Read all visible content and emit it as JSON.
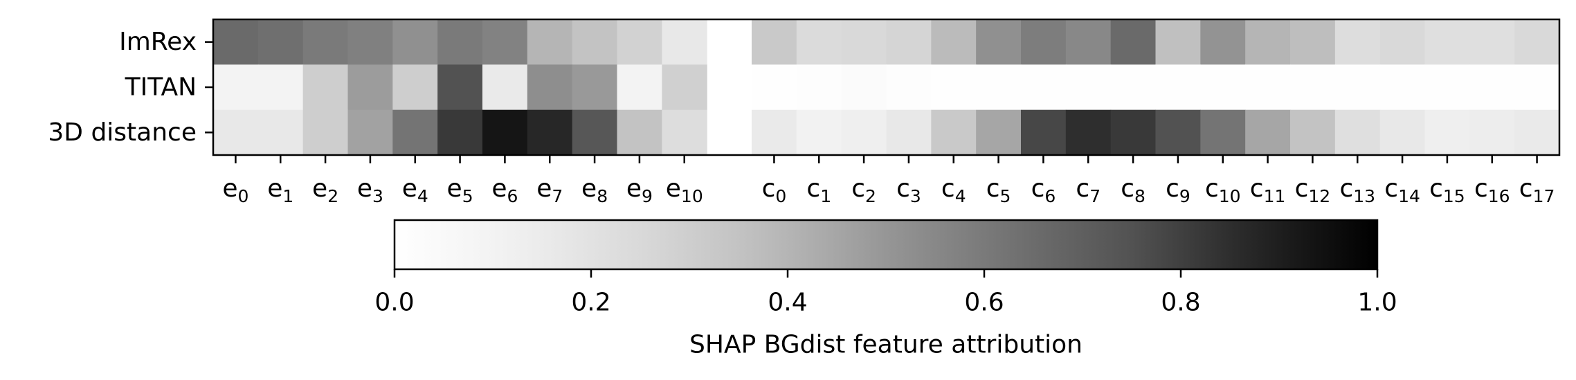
{
  "chart_data": {
    "type": "heatmap",
    "colormap": "Greys",
    "color_range": [
      0.0,
      1.0
    ],
    "rows": [
      "ImRex",
      "TITAN",
      "3D distance"
    ],
    "epitope_columns": [
      {
        "base": "e",
        "sub": "0"
      },
      {
        "base": "e",
        "sub": "1"
      },
      {
        "base": "e",
        "sub": "2"
      },
      {
        "base": "e",
        "sub": "3"
      },
      {
        "base": "e",
        "sub": "4"
      },
      {
        "base": "e",
        "sub": "5"
      },
      {
        "base": "e",
        "sub": "6"
      },
      {
        "base": "e",
        "sub": "7"
      },
      {
        "base": "e",
        "sub": "8"
      },
      {
        "base": "e",
        "sub": "9"
      },
      {
        "base": "e",
        "sub": "10"
      }
    ],
    "cdr3_columns": [
      {
        "base": "c",
        "sub": "0"
      },
      {
        "base": "c",
        "sub": "1"
      },
      {
        "base": "c",
        "sub": "2"
      },
      {
        "base": "c",
        "sub": "3"
      },
      {
        "base": "c",
        "sub": "4"
      },
      {
        "base": "c",
        "sub": "5"
      },
      {
        "base": "c",
        "sub": "6"
      },
      {
        "base": "c",
        "sub": "7"
      },
      {
        "base": "c",
        "sub": "8"
      },
      {
        "base": "c",
        "sub": "9"
      },
      {
        "base": "c",
        "sub": "10"
      },
      {
        "base": "c",
        "sub": "11"
      },
      {
        "base": "c",
        "sub": "12"
      },
      {
        "base": "c",
        "sub": "13"
      },
      {
        "base": "c",
        "sub": "14"
      },
      {
        "base": "c",
        "sub": "15"
      },
      {
        "base": "c",
        "sub": "16"
      },
      {
        "base": "c",
        "sub": "17"
      }
    ],
    "epitope_values": [
      [
        0.66,
        0.64,
        0.6,
        0.58,
        0.52,
        0.6,
        0.57,
        0.4,
        0.35,
        0.28,
        0.17
      ],
      [
        0.1,
        0.1,
        0.3,
        0.48,
        0.3,
        0.75,
        0.16,
        0.53,
        0.49,
        0.1,
        0.29
      ],
      [
        0.17,
        0.17,
        0.3,
        0.46,
        0.62,
        0.82,
        0.93,
        0.87,
        0.73,
        0.35,
        0.23
      ]
    ],
    "cdr3_values": [
      [
        0.32,
        0.24,
        0.25,
        0.27,
        0.38,
        0.52,
        0.59,
        0.55,
        0.66,
        0.36,
        0.51,
        0.4,
        0.37,
        0.23,
        0.25,
        0.22,
        0.22,
        0.25
      ],
      [
        0.01,
        0.02,
        0.03,
        0.02,
        0.01,
        0.01,
        0.01,
        0.01,
        0.01,
        0.01,
        0.01,
        0.01,
        0.01,
        0.01,
        0.01,
        0.01,
        0.01,
        0.01
      ],
      [
        0.16,
        0.11,
        0.13,
        0.17,
        0.32,
        0.45,
        0.78,
        0.85,
        0.82,
        0.75,
        0.62,
        0.45,
        0.35,
        0.22,
        0.17,
        0.13,
        0.14,
        0.16
      ]
    ],
    "colorbar": {
      "orientation": "horizontal",
      "ticks": [
        0.0,
        0.2,
        0.4,
        0.6,
        0.8,
        1.0
      ],
      "tick_labels": [
        "0.0",
        "0.2",
        "0.4",
        "0.6",
        "0.8",
        "1.0"
      ],
      "label": "SHAP BGdist feature attribution"
    }
  }
}
